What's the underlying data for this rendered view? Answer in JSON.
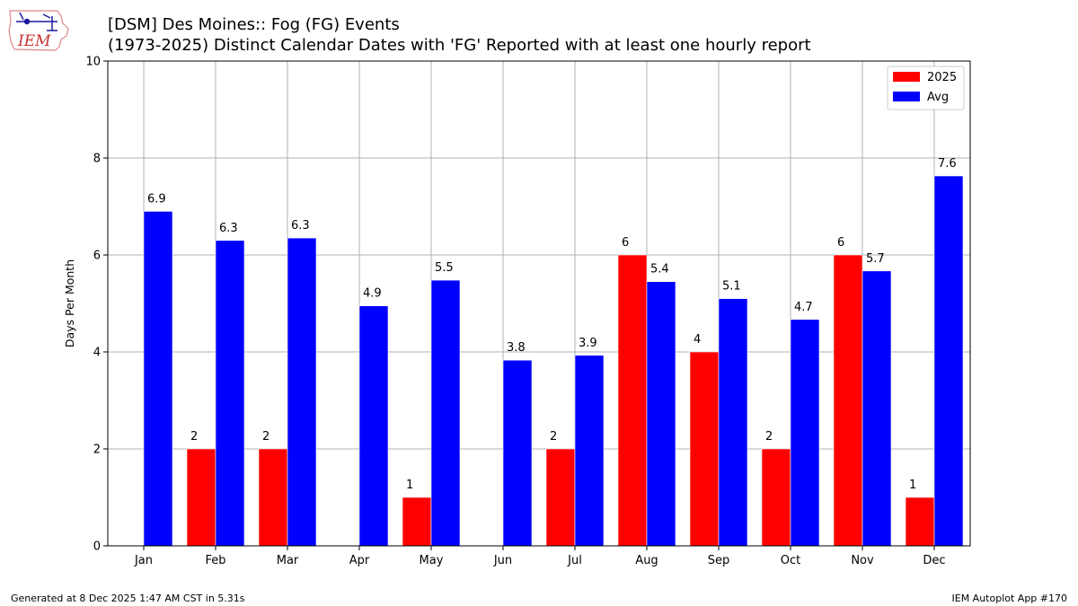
{
  "header": {
    "logo_text": "IEM",
    "title_line1": "[DSM] Des Moines:: Fog (FG) Events",
    "title_line2": "(1973-2025) Distinct Calendar Dates with 'FG' Reported with at least one hourly report"
  },
  "footer": {
    "generated": "Generated at 8 Dec 2025 1:47 AM CST in 5.31s",
    "app": "IEM Autoplot App #170"
  },
  "colors": {
    "series_2025": "#ff0000",
    "series_avg": "#0000ff",
    "grid": "#b0b0b0"
  },
  "chart_data": {
    "type": "bar",
    "title": "[DSM] Des Moines:: Fog (FG) Events",
    "subtitle": "(1973-2025) Distinct Calendar Dates with 'FG' Reported with at least one hourly report",
    "xlabel": "",
    "ylabel": "Days Per Month",
    "ylim": [
      0,
      10
    ],
    "yticks": [
      0,
      2,
      4,
      6,
      8,
      10
    ],
    "grid": true,
    "legend_position": "top-right",
    "categories": [
      "Jan",
      "Feb",
      "Mar",
      "Apr",
      "May",
      "Jun",
      "Jul",
      "Aug",
      "Sep",
      "Oct",
      "Nov",
      "Dec"
    ],
    "series": [
      {
        "name": "2025",
        "color": "#ff0000",
        "values": [
          0,
          2,
          2,
          0,
          1,
          0,
          2,
          6,
          4,
          2,
          6,
          1
        ],
        "labels": [
          "",
          "2",
          "2",
          "",
          "1",
          "",
          "2",
          "6",
          "4",
          "2",
          "6",
          "1"
        ]
      },
      {
        "name": "Avg",
        "color": "#0000ff",
        "values": [
          6.9,
          6.3,
          6.35,
          4.95,
          5.48,
          3.83,
          3.93,
          5.45,
          5.1,
          4.67,
          5.67,
          7.63
        ],
        "labels": [
          "6.9",
          "6.3",
          "6.3",
          "4.9",
          "5.5",
          "3.8",
          "3.9",
          "5.4",
          "5.1",
          "4.7",
          "5.7",
          "7.6"
        ]
      }
    ]
  }
}
